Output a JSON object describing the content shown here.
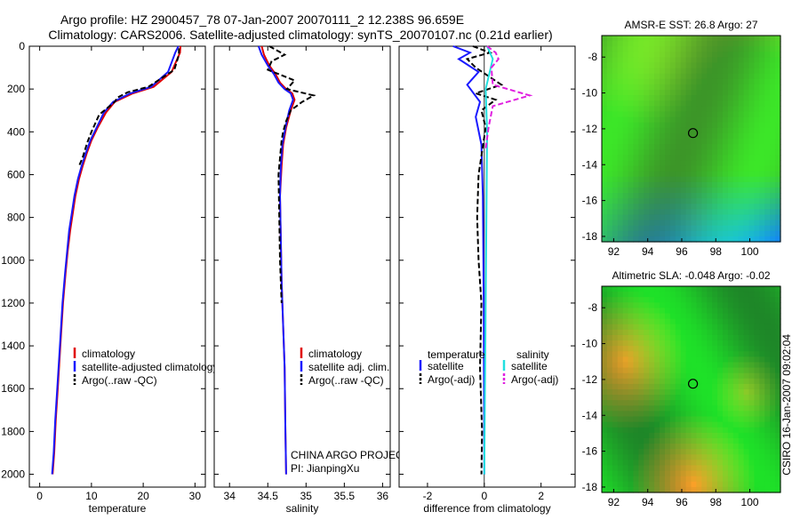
{
  "header": {
    "line1": "Argo profile: HZ 2900457_78 07-Jan-2007 20070111_2 12.238S 96.659E",
    "line2": "Climatology: CARS2006. Satellite-adjusted climatology: synTS_20070107.nc (0.21d earlier)"
  },
  "credit": "CSIRO 16-Jan-2007 09:02:04",
  "colors": {
    "climatology": "#e00000",
    "satellite": "#1a1aff",
    "argo": "#000000",
    "sal_satellite": "#22e0e0",
    "sal_argo": "#e020e0"
  },
  "chart_data": [
    {
      "type": "line",
      "xlabel": "temperature",
      "ylabel": "",
      "xlim": [
        -2,
        32
      ],
      "ylim": [
        2060,
        0
      ],
      "xticks": [
        0,
        10,
        20,
        30
      ],
      "yticks": [
        0,
        200,
        400,
        600,
        800,
        1000,
        1200,
        1400,
        1600,
        1800,
        2000
      ],
      "legend": {
        "items": [
          "climatology",
          "satellite-adjusted climatology",
          "Argo(..raw -QC)"
        ]
      },
      "series": [
        {
          "name": "climatology",
          "style": "solid",
          "x": [
            27.2,
            27.1,
            25.5,
            22.0,
            18.0,
            14.5,
            12.8,
            11.2,
            10.0,
            9.1,
            8.3,
            7.6,
            6.9,
            6.4,
            5.9,
            5.4,
            5.0,
            4.5,
            4.0,
            3.5,
            3.1,
            2.8,
            2.5
          ],
          "y": [
            0,
            30,
            120,
            190,
            220,
            260,
            310,
            380,
            440,
            500,
            560,
            620,
            700,
            780,
            860,
            960,
            1060,
            1200,
            1400,
            1600,
            1750,
            1900,
            2000
          ]
        },
        {
          "name": "satellite-adjusted climatology",
          "style": "solid",
          "x": [
            26.8,
            26.2,
            24.8,
            21.5,
            17.5,
            14.2,
            12.4,
            11.0,
            9.8,
            8.9,
            8.1,
            7.4,
            6.7,
            6.2,
            5.7,
            5.3,
            4.9,
            4.4,
            3.9,
            3.4,
            3.0,
            2.7,
            2.4
          ],
          "y": [
            0,
            30,
            120,
            190,
            220,
            260,
            310,
            380,
            440,
            500,
            560,
            620,
            700,
            780,
            860,
            960,
            1060,
            1200,
            1400,
            1600,
            1750,
            1900,
            2000
          ]
        },
        {
          "name": "Argo(..raw -QC)",
          "style": "dashed",
          "x": [
            26.9,
            26.9,
            26.0,
            21.0,
            17.0,
            15.0,
            14.5,
            13.0,
            11.5,
            10.0,
            9.2,
            8.3,
            7.6
          ],
          "y": [
            10,
            40,
            110,
            190,
            215,
            240,
            260,
            290,
            320,
            400,
            450,
            520,
            560
          ]
        }
      ]
    },
    {
      "type": "line",
      "xlabel": "salinity",
      "ylabel": "",
      "xlim": [
        33.8,
        36.1
      ],
      "ylim": [
        2060,
        0
      ],
      "xticks": [
        34,
        34.5,
        35,
        35.5,
        36
      ],
      "legend": {
        "items": [
          "climatology",
          "satellite adj. clim.",
          "Argo(..raw -QC)"
        ]
      },
      "annotation": [
        "CHINA ARGO PROJECT",
        "PI: JianpingXu"
      ],
      "series": [
        {
          "name": "climatology",
          "style": "solid",
          "x": [
            34.42,
            34.45,
            34.52,
            34.6,
            34.66,
            34.74,
            34.82,
            34.85,
            34.8,
            34.74,
            34.7,
            34.68,
            34.66,
            34.67,
            34.68,
            34.7,
            34.72,
            34.73,
            34.74
          ],
          "y": [
            0,
            40,
            90,
            130,
            170,
            200,
            220,
            250,
            300,
            380,
            460,
            560,
            700,
            900,
            1100,
            1300,
            1500,
            1800,
            2000
          ]
        },
        {
          "name": "satellite adj. clim.",
          "style": "solid",
          "x": [
            34.38,
            34.42,
            34.5,
            34.58,
            34.64,
            34.72,
            34.8,
            34.83,
            34.78,
            34.73,
            34.69,
            34.67,
            34.66,
            34.67,
            34.68,
            34.7,
            34.72,
            34.73,
            34.74
          ],
          "y": [
            0,
            40,
            90,
            130,
            170,
            200,
            220,
            250,
            300,
            380,
            460,
            560,
            700,
            900,
            1100,
            1300,
            1500,
            1800,
            2000
          ]
        },
        {
          "name": "Argo(..raw -QC)",
          "style": "dashed",
          "x": [
            34.52,
            34.62,
            34.72,
            34.55,
            34.5,
            34.85,
            34.75,
            35.1,
            34.95,
            34.8,
            34.74,
            34.7,
            34.68,
            34.64,
            34.65,
            34.66,
            34.68
          ],
          "y": [
            0,
            20,
            40,
            70,
            110,
            160,
            200,
            230,
            260,
            300,
            350,
            400,
            440,
            600,
            800,
            1000,
            1200
          ]
        }
      ]
    },
    {
      "type": "line",
      "xlabel": "difference from climatology",
      "ylabel": "",
      "xlim": [
        -3,
        3.2
      ],
      "ylim": [
        2060,
        0
      ],
      "xticks": [
        -2,
        0,
        2
      ],
      "legend": {
        "groups": [
          "temperature",
          "salinity"
        ],
        "items": [
          "satellite",
          "Argo(-adj)",
          "satellite",
          "Argo(-adj)"
        ]
      },
      "series": [
        {
          "name": "temperature satellite",
          "style": "solid",
          "x": [
            -1.1,
            -0.5,
            -0.9,
            -0.2,
            -0.6,
            -0.15,
            -0.3,
            -0.1,
            -0.05,
            -0.02,
            0.0
          ],
          "y": [
            0,
            30,
            60,
            120,
            180,
            260,
            330,
            460,
            700,
            1200,
            2000
          ]
        },
        {
          "name": "temperature Argo(-adj)",
          "style": "dashed",
          "x": [
            -0.4,
            0.2,
            -0.6,
            -0.3,
            0.6,
            -0.3,
            0.4,
            -0.1,
            0.05,
            -0.2,
            -0.25,
            -0.2,
            -0.1,
            -0.15,
            -0.08,
            -0.1
          ],
          "y": [
            0,
            30,
            60,
            100,
            180,
            220,
            250,
            300,
            380,
            600,
            800,
            1000,
            1200,
            1500,
            1800,
            2000
          ]
        },
        {
          "name": "salinity satellite",
          "style": "solid",
          "x": [
            0.1,
            0.3,
            0.05,
            0.1,
            0.0
          ],
          "y": [
            0,
            60,
            200,
            400,
            2000
          ]
        },
        {
          "name": "salinity Argo(-adj)",
          "style": "dashed",
          "x": [
            0.1,
            0.4,
            0.5,
            0.25,
            0.3,
            1.6,
            0.3,
            0.15,
            0.05
          ],
          "y": [
            0,
            30,
            60,
            100,
            180,
            230,
            280,
            380,
            480
          ]
        }
      ]
    },
    {
      "type": "heatmap",
      "title": "AMSR-E SST: 26.8 Argo: 27",
      "xlim": [
        91.3,
        101.8
      ],
      "ylim": [
        -18.3,
        -6.8
      ],
      "xticks": [
        92,
        94,
        96,
        98,
        100
      ],
      "yticks": [
        -8,
        -10,
        -12,
        -14,
        -16,
        -18
      ],
      "marker": {
        "lon": 96.659,
        "lat": -12.238
      }
    },
    {
      "type": "heatmap",
      "title": "Altimetric SLA: -0.048 Argo: -0.02",
      "xlim": [
        91.3,
        101.8
      ],
      "ylim": [
        -18.3,
        -6.8
      ],
      "xticks": [
        92,
        94,
        96,
        98,
        100
      ],
      "yticks": [
        -8,
        -10,
        -12,
        -14,
        -16,
        -18
      ],
      "marker": {
        "lon": 96.659,
        "lat": -12.238
      }
    }
  ]
}
